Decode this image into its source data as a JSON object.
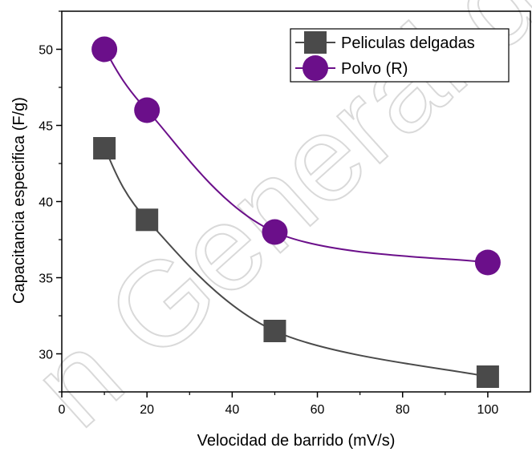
{
  "chart_data": {
    "type": "line",
    "xlabel": "Velocidad de barrido (mV/s)",
    "ylabel": "Capacitancia especifica (F/g)",
    "xlim": [
      0,
      110
    ],
    "ylim": [
      27.5,
      52.5
    ],
    "xticks": [
      0,
      20,
      40,
      60,
      80,
      100
    ],
    "yticks": [
      30,
      35,
      40,
      45,
      50
    ],
    "grid": false,
    "legend_position": "top-right",
    "series": [
      {
        "name": "Peliculas delgadas",
        "marker": "square",
        "color": "#4a4a4a",
        "x": [
          10,
          20,
          50,
          100
        ],
        "y": [
          43.5,
          38.8,
          31.5,
          28.5
        ]
      },
      {
        "name": "Polvo (R)",
        "marker": "circle",
        "color": "#6b0f8a",
        "x": [
          10,
          20,
          50,
          100
        ],
        "y": [
          50.0,
          46.0,
          38.0,
          36.0
        ]
      }
    ]
  },
  "watermark": "n General de Bib"
}
